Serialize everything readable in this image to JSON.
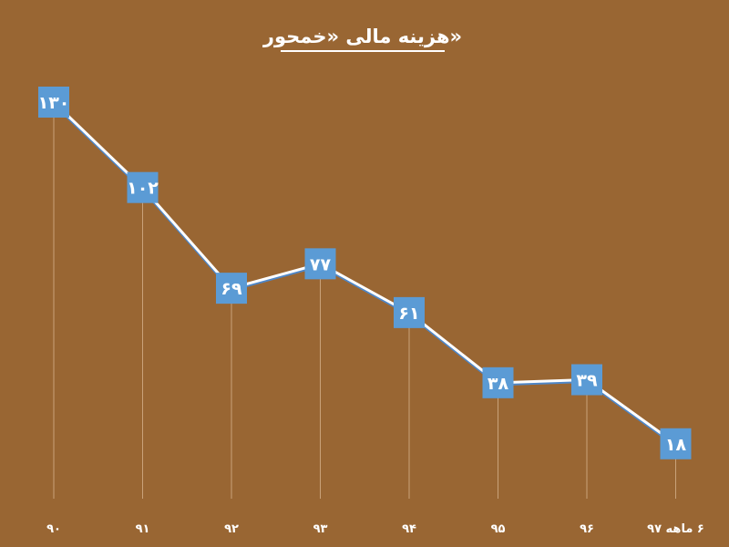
{
  "chart_data": {
    "type": "line",
    "title": "هزینه مالی «خمحور»",
    "xlabel": "",
    "ylabel": "",
    "categories": [
      "۹۰",
      "۹۱",
      "۹۲",
      "۹۳",
      "۹۴",
      "۹۵",
      "۹۶",
      "۶ ماهه ۹۷"
    ],
    "series": [
      {
        "values": [
          130,
          102,
          69,
          77,
          61,
          38,
          39,
          18
        ],
        "labels": [
          "۱۳۰",
          "۱۰۲",
          "۶۹",
          "۷۷",
          "۶۱",
          "۳۸",
          "۳۹",
          "۱۸"
        ]
      }
    ],
    "ylim": [
      0,
      130
    ],
    "grid": false,
    "legend": "none",
    "colors": {
      "background": "#996633",
      "line": "#ffffff",
      "line_shadow": "#4f86c6",
      "marker": "#5b9bd5",
      "drop_line": "#c9a27a",
      "text": "#ffffff"
    }
  }
}
